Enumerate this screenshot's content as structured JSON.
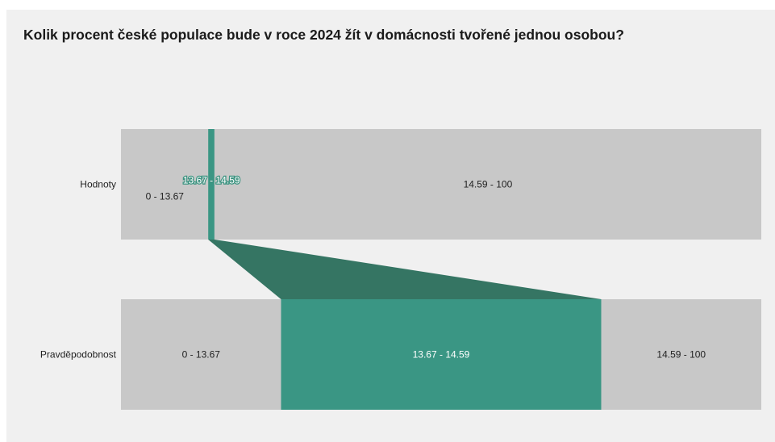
{
  "title": "Kolik procent české populace bude v roce 2024 žít v domácnosti tvořené jednou osobou?",
  "colors": {
    "panel": "#f0f0f0",
    "segment": "#c8c8c8",
    "highlight": "#3a9684",
    "funnel": "#357563"
  },
  "chart_data": {
    "type": "bar",
    "axis_range": [
      0,
      100
    ],
    "rows": [
      {
        "label": "Hodnoty",
        "segments": [
          {
            "label": "0 - 13.67",
            "start": 0,
            "end": 13.67
          },
          {
            "label": "13.67 - 14.59",
            "start": 13.67,
            "end": 14.59,
            "highlight": true
          },
          {
            "label": "14.59 - 100",
            "start": 14.59,
            "end": 100
          }
        ]
      },
      {
        "label": "Pravděpodobnost",
        "segments": [
          {
            "label": "0 - 13.67",
            "start": 0,
            "end": 25
          },
          {
            "label": "13.67 - 14.59",
            "start": 25,
            "end": 75,
            "highlight": true
          },
          {
            "label": "14.59 - 100",
            "start": 75,
            "end": 100
          }
        ]
      }
    ]
  }
}
